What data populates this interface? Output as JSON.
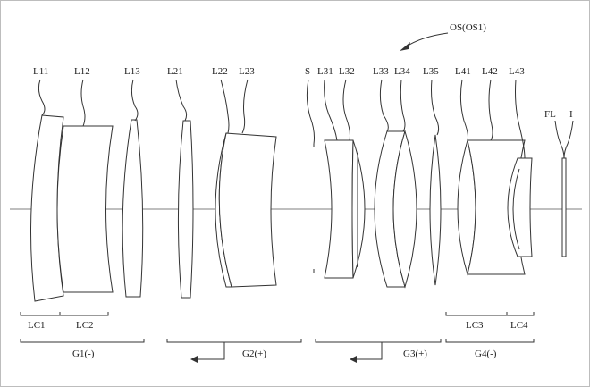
{
  "title": "OS(OS1)",
  "lenses": [
    {
      "id": "L11",
      "label": "L11"
    },
    {
      "id": "L12",
      "label": "L12"
    },
    {
      "id": "L13",
      "label": "L13"
    },
    {
      "id": "L21",
      "label": "L21"
    },
    {
      "id": "L22",
      "label": "L22"
    },
    {
      "id": "L23",
      "label": "L23"
    },
    {
      "id": "S",
      "label": "S"
    },
    {
      "id": "L31",
      "label": "L31"
    },
    {
      "id": "L32",
      "label": "L32"
    },
    {
      "id": "L33",
      "label": "L33"
    },
    {
      "id": "L34",
      "label": "L34"
    },
    {
      "id": "L35",
      "label": "L35"
    },
    {
      "id": "L41",
      "label": "L41"
    },
    {
      "id": "L42",
      "label": "L42"
    },
    {
      "id": "L43",
      "label": "L43"
    },
    {
      "id": "FL",
      "label": "FL"
    },
    {
      "id": "I",
      "label": "I"
    }
  ],
  "components": [
    {
      "id": "LC1",
      "label": "LC1"
    },
    {
      "id": "LC2",
      "label": "LC2"
    },
    {
      "id": "LC3",
      "label": "LC3"
    },
    {
      "id": "LC4",
      "label": "LC4"
    }
  ],
  "groups": [
    {
      "id": "G1",
      "label": "G1(-)"
    },
    {
      "id": "G2",
      "label": "G2(+)"
    },
    {
      "id": "G3",
      "label": "G3(+)"
    },
    {
      "id": "G4",
      "label": "G4(-)"
    }
  ]
}
